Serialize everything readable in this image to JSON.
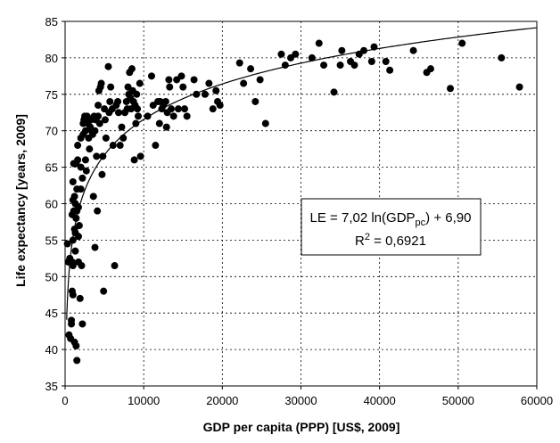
{
  "chart_data": {
    "type": "scatter",
    "title": "",
    "xlabel": "GDP per capita (PPP) [US$, 2009]",
    "ylabel": "Life expectancy [years, 2009]",
    "xlim": [
      0,
      60000
    ],
    "ylim": [
      35,
      85
    ],
    "xticks": [
      "0",
      "10000",
      "20000",
      "30000",
      "40000",
      "50000",
      "60000"
    ],
    "yticks": [
      "35",
      "40",
      "45",
      "50",
      "55",
      "60",
      "65",
      "70",
      "75",
      "80",
      "85"
    ],
    "grid": "dashed",
    "trendline": {
      "type": "logarithmic",
      "a": 7.02,
      "b": 6.9
    },
    "annotation": {
      "line1_prefix": "LE = 7,02 ln(GDP",
      "line1_sub": "pc",
      "line1_suffix": ") + 6,90",
      "line2_prefix": "R",
      "line2_sup": "2",
      "line2_suffix": " = 0,6921"
    },
    "points": [
      [
        300,
        54.5
      ],
      [
        400,
        52
      ],
      [
        500,
        42
      ],
      [
        600,
        52.5
      ],
      [
        700,
        41.5
      ],
      [
        800,
        44
      ],
      [
        800,
        43.5
      ],
      [
        900,
        48
      ],
      [
        900,
        52
      ],
      [
        900,
        58.5
      ],
      [
        1000,
        55
      ],
      [
        1000,
        60.5
      ],
      [
        1000,
        63
      ],
      [
        1000,
        51.5
      ],
      [
        1000,
        47.5
      ],
      [
        1100,
        65.5
      ],
      [
        1100,
        59
      ],
      [
        1200,
        56.5
      ],
      [
        1200,
        61
      ],
      [
        1200,
        41
      ],
      [
        1300,
        60
      ],
      [
        1300,
        53.5
      ],
      [
        1300,
        56
      ],
      [
        1400,
        65.5
      ],
      [
        1400,
        58
      ],
      [
        1400,
        40.5
      ],
      [
        1500,
        38.5
      ],
      [
        1500,
        62
      ],
      [
        1500,
        59
      ],
      [
        1600,
        66
      ],
      [
        1600,
        68
      ],
      [
        1700,
        52
      ],
      [
        1700,
        55.5
      ],
      [
        1700,
        59.5
      ],
      [
        1800,
        57
      ],
      [
        1900,
        47
      ],
      [
        2000,
        69
      ],
      [
        2000,
        65
      ],
      [
        2000,
        62
      ],
      [
        2100,
        51.5
      ],
      [
        2200,
        43.5
      ],
      [
        2200,
        63.5
      ],
      [
        2300,
        71
      ],
      [
        2300,
        69.5
      ],
      [
        2400,
        71.5
      ],
      [
        2500,
        72
      ],
      [
        2600,
        70
      ],
      [
        2600,
        66
      ],
      [
        2700,
        64.5
      ],
      [
        2800,
        72
      ],
      [
        2900,
        71
      ],
      [
        3000,
        71.5
      ],
      [
        3000,
        69
      ],
      [
        3100,
        67.5
      ],
      [
        3200,
        70.5
      ],
      [
        3300,
        71.5
      ],
      [
        3400,
        70
      ],
      [
        3500,
        69.5
      ],
      [
        3600,
        61
      ],
      [
        3700,
        72
      ],
      [
        3800,
        54
      ],
      [
        3800,
        70
      ],
      [
        3900,
        71.5
      ],
      [
        4000,
        66.5
      ],
      [
        4100,
        59
      ],
      [
        4200,
        72
      ],
      [
        4200,
        73.5
      ],
      [
        4300,
        75.5
      ],
      [
        4400,
        71
      ],
      [
        4500,
        76
      ],
      [
        4600,
        76.5
      ],
      [
        4700,
        64
      ],
      [
        4800,
        66.5
      ],
      [
        4900,
        48
      ],
      [
        5000,
        73
      ],
      [
        5100,
        71.5
      ],
      [
        5200,
        69
      ],
      [
        5500,
        78.8
      ],
      [
        5600,
        72.5
      ],
      [
        5700,
        74
      ],
      [
        5800,
        76
      ],
      [
        6000,
        73
      ],
      [
        6100,
        68
      ],
      [
        6300,
        51.5
      ],
      [
        6500,
        73.5
      ],
      [
        6700,
        74
      ],
      [
        6800,
        72.5
      ],
      [
        7000,
        68
      ],
      [
        7200,
        70.5
      ],
      [
        7400,
        69
      ],
      [
        7600,
        72.5
      ],
      [
        7800,
        74
      ],
      [
        7900,
        73
      ],
      [
        8000,
        76
      ],
      [
        8100,
        75
      ],
      [
        8200,
        78
      ],
      [
        8300,
        74.5
      ],
      [
        8400,
        73
      ],
      [
        8500,
        78.5
      ],
      [
        8600,
        75.5
      ],
      [
        8700,
        74
      ],
      [
        8800,
        66
      ],
      [
        8900,
        73.5
      ],
      [
        9000,
        71
      ],
      [
        9100,
        75
      ],
      [
        9200,
        73
      ],
      [
        9300,
        72
      ],
      [
        9500,
        76.5
      ],
      [
        9600,
        66.5
      ],
      [
        10500,
        72
      ],
      [
        11000,
        77.5
      ],
      [
        11200,
        73.5
      ],
      [
        11500,
        68
      ],
      [
        11800,
        74
      ],
      [
        12000,
        71
      ],
      [
        12100,
        74
      ],
      [
        12300,
        73
      ],
      [
        12500,
        73.5
      ],
      [
        12800,
        74
      ],
      [
        12900,
        70.5
      ],
      [
        13000,
        72.5
      ],
      [
        13200,
        77
      ],
      [
        13300,
        76
      ],
      [
        13500,
        73
      ],
      [
        13800,
        72
      ],
      [
        14200,
        77
      ],
      [
        14400,
        73
      ],
      [
        14800,
        77.5
      ],
      [
        15000,
        76
      ],
      [
        15200,
        73
      ],
      [
        15500,
        72
      ],
      [
        16400,
        77
      ],
      [
        16700,
        75
      ],
      [
        17800,
        75
      ],
      [
        18300,
        76.5
      ],
      [
        18800,
        73
      ],
      [
        19200,
        75.5
      ],
      [
        19400,
        74
      ],
      [
        19700,
        73.5
      ],
      [
        22200,
        79.3
      ],
      [
        22700,
        76.5
      ],
      [
        23600,
        78.5
      ],
      [
        24200,
        74
      ],
      [
        24800,
        77
      ],
      [
        25500,
        71
      ],
      [
        27500,
        80.5
      ],
      [
        28000,
        79
      ],
      [
        28700,
        80
      ],
      [
        29300,
        80.5
      ],
      [
        31400,
        80
      ],
      [
        32300,
        82
      ],
      [
        32900,
        79
      ],
      [
        34200,
        75.3
      ],
      [
        35000,
        79
      ],
      [
        35200,
        81
      ],
      [
        36300,
        79.5
      ],
      [
        36800,
        79
      ],
      [
        37400,
        80.5
      ],
      [
        38000,
        81
      ],
      [
        39000,
        79.5
      ],
      [
        39300,
        81.5
      ],
      [
        40800,
        79.5
      ],
      [
        41300,
        78.3
      ],
      [
        44300,
        81
      ],
      [
        46000,
        78
      ],
      [
        46500,
        78.5
      ],
      [
        49000,
        75.8
      ],
      [
        50500,
        82
      ],
      [
        55500,
        80
      ],
      [
        57800,
        76
      ]
    ]
  }
}
